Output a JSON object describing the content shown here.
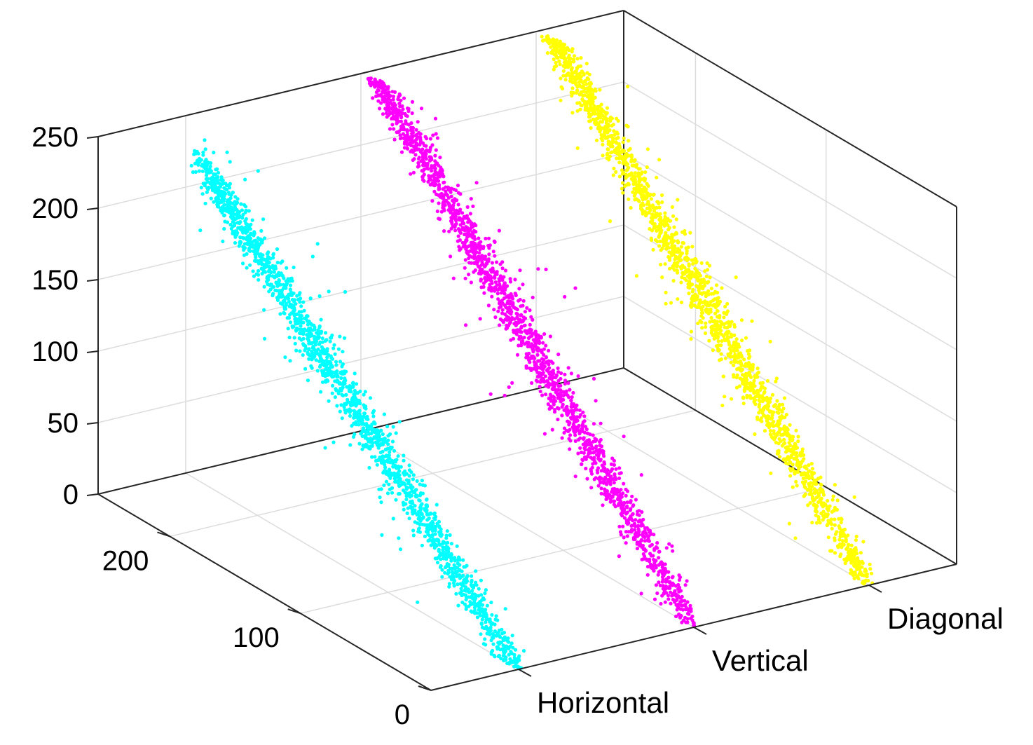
{
  "chart_data": {
    "type": "scatter",
    "title": "",
    "xlabel": "",
    "ylabel": "",
    "zlabel": "",
    "categories": [
      "Horizontal",
      "Vertical",
      "Diagonal"
    ],
    "z_ticks": [
      "0",
      "50",
      "100",
      "150",
      "200",
      "250"
    ],
    "y_ticks": [
      "0",
      "100",
      "200"
    ],
    "zlim": [
      0,
      250
    ],
    "ylim": [
      0,
      255
    ],
    "grid": true,
    "series": [
      {
        "category": "Horizontal",
        "color": "#00ffff",
        "points_count": 4000,
        "trend": {
          "y_at_start": 0,
          "y_at_end": 245,
          "z_at_start": 0,
          "z_at_end": 225
        },
        "note_spread_increases_toward_low_values": true
      },
      {
        "category": "Vertical",
        "color": "#ff00ff",
        "points_count": 4000,
        "trend": {
          "y_at_start": 0,
          "y_at_end": 245,
          "z_at_start": 0,
          "z_at_end": 255
        }
      },
      {
        "category": "Diagonal",
        "color": "#ffff00",
        "points_count": 4000,
        "trend": {
          "y_at_start": 0,
          "y_at_end": 245,
          "z_at_start": 0,
          "z_at_end": 255
        }
      }
    ]
  }
}
